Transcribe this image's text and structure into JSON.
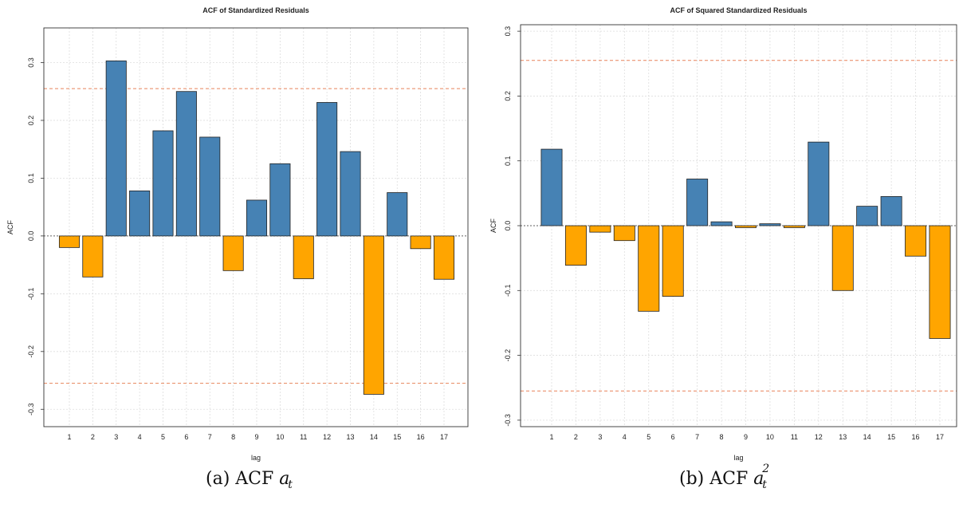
{
  "colors": {
    "positive": "#4682B4",
    "negative": "#FFA500",
    "conf_line": "#E8825A",
    "grid": "#dddddd"
  },
  "chart_data": [
    {
      "type": "bar",
      "title": "ACF of Standardized Residuals",
      "xlabel": "lag",
      "ylabel": "ACF",
      "categories": [
        "1",
        "2",
        "3",
        "4",
        "5",
        "6",
        "7",
        "8",
        "9",
        "10",
        "11",
        "12",
        "13",
        "14",
        "15",
        "16",
        "17"
      ],
      "values": [
        -0.02,
        -0.071,
        0.303,
        0.078,
        0.182,
        0.25,
        0.171,
        -0.06,
        0.062,
        0.125,
        -0.074,
        0.231,
        0.146,
        -0.274,
        0.075,
        -0.022,
        -0.075
      ],
      "ylim": [
        -0.33,
        0.36
      ],
      "yticks": [
        -0.3,
        -0.2,
        -0.1,
        0.0,
        0.1,
        0.2,
        0.3
      ],
      "ytick_labels": [
        "-0.3",
        "-0.2",
        "-0.1",
        "0.0",
        "0.1",
        "0.2",
        "0.3"
      ],
      "conf_bounds": [
        0.255,
        -0.255
      ],
      "grid": true
    },
    {
      "type": "bar",
      "title": "ACF of Squared Standardized Residuals",
      "xlabel": "lag",
      "ylabel": "ACF",
      "categories": [
        "1",
        "2",
        "3",
        "4",
        "5",
        "6",
        "7",
        "8",
        "9",
        "10",
        "11",
        "12",
        "13",
        "14",
        "15",
        "16",
        "17"
      ],
      "values": [
        0.118,
        -0.061,
        -0.01,
        -0.023,
        -0.132,
        -0.109,
        0.072,
        0.006,
        -0.003,
        0.003,
        -0.003,
        0.129,
        -0.1,
        0.03,
        0.045,
        -0.047,
        -0.174
      ],
      "ylim": [
        -0.31,
        0.31
      ],
      "yticks": [
        -0.3,
        -0.2,
        -0.1,
        0.0,
        0.1,
        0.2,
        0.3
      ],
      "ytick_labels": [
        "-0.3",
        "-0.2",
        "-0.1",
        "0.0",
        "0.1",
        "0.2",
        "0.3"
      ],
      "conf_bounds": [
        0.255,
        -0.255
      ],
      "grid": true
    }
  ],
  "captions": {
    "a": {
      "label": "(a) ACF",
      "var": "a",
      "sub": "t"
    },
    "b": {
      "label": "(b) ACF",
      "var": "a",
      "sub": "t",
      "sup": "2"
    }
  }
}
